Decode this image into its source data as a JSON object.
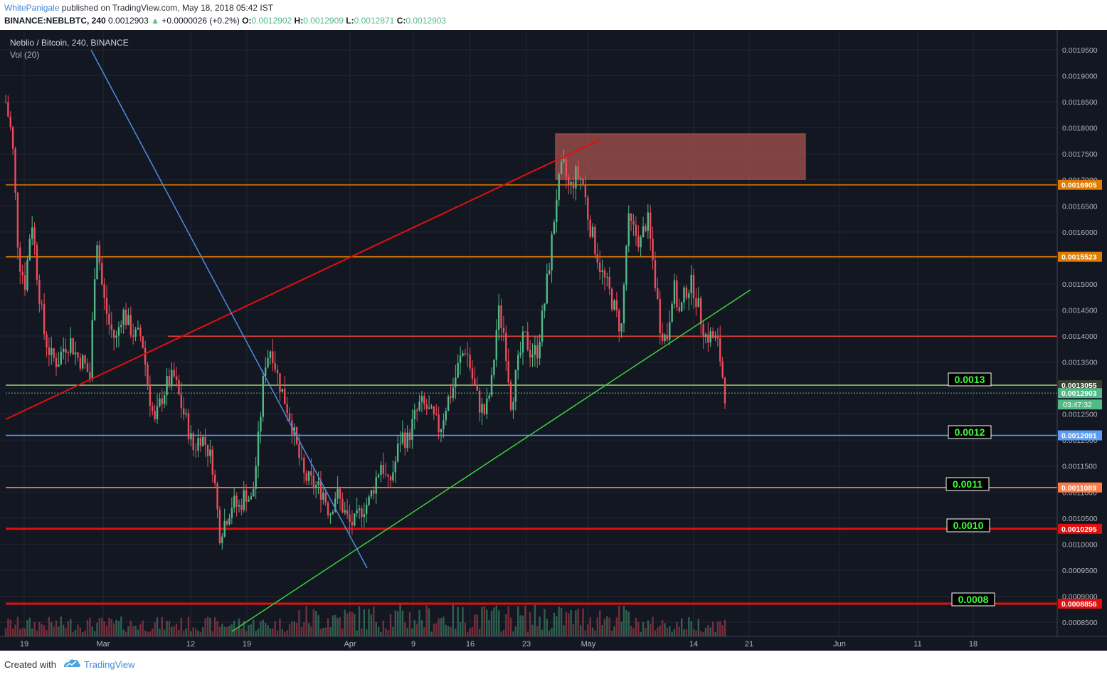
{
  "header": {
    "author": "WhitePanigale",
    "published": "published on TradingView.com, May 18, 2018 05:42 IST",
    "symbol": "BINANCE:NEBLBTC, 240",
    "last": "0.0012903",
    "change": "+0.0000026 (+0.2%)",
    "o_label": "O:",
    "o": "0.0012902",
    "h_label": "H:",
    "h": "0.0012909",
    "l_label": "L:",
    "l": "0.0012871",
    "c_label": "C:",
    "c": "0.0012903"
  },
  "legend": {
    "title": "Neblio / Bitcoin, 240, BINANCE",
    "vol": "Vol (20)"
  },
  "footer": {
    "created": "Created with",
    "brand": "TradingView"
  },
  "colors": {
    "background": "#131722",
    "grid": "#232733",
    "up": "#53b987",
    "down": "#eb4d5c",
    "axis_text": "#b2b5be"
  },
  "chart_data": {
    "type": "candlestick",
    "title": "Neblio / Bitcoin, 240, BINANCE",
    "ylim": [
      0.000825,
      0.00198
    ],
    "y_ticks": [
      "0.0008500",
      "0.0009000",
      "0.0009500",
      "0.0010000",
      "0.0010500",
      "0.0011000",
      "0.0011500",
      "0.0012000",
      "0.0012500",
      "0.0013000",
      "0.0013500",
      "0.0014000",
      "0.0014500",
      "0.0015000",
      "0.0015500",
      "0.0016000",
      "0.0016500",
      "0.0017000",
      "0.0017500",
      "0.0018000",
      "0.0018500",
      "0.0019000",
      "0.0019500"
    ],
    "x_ticks": [
      "19",
      "Mar",
      "12",
      "19",
      "Apr",
      "9",
      "16",
      "23",
      "May",
      "14",
      "21",
      "Jun",
      "11",
      "18"
    ],
    "price_path": [
      [
        0,
        0.00185
      ],
      [
        1,
        0.00178
      ],
      [
        2,
        0.00155
      ],
      [
        3,
        0.0015
      ],
      [
        4,
        0.00163
      ],
      [
        5,
        0.0015
      ],
      [
        6,
        0.0014
      ],
      [
        7,
        0.00136
      ],
      [
        8,
        0.00135
      ],
      [
        9,
        0.00138
      ],
      [
        10,
        0.00139
      ],
      [
        11,
        0.00136
      ],
      [
        12,
        0.00135
      ],
      [
        13,
        0.00132
      ],
      [
        14,
        0.0016
      ],
      [
        15,
        0.00148
      ],
      [
        16,
        0.00142
      ],
      [
        17,
        0.00139
      ],
      [
        18,
        0.00145
      ],
      [
        19,
        0.00142
      ],
      [
        20,
        0.0014
      ],
      [
        21,
        0.0014
      ],
      [
        22,
        0.0013
      ],
      [
        23,
        0.00123
      ],
      [
        24,
        0.00128
      ],
      [
        25,
        0.00131
      ],
      [
        26,
        0.00132
      ],
      [
        27,
        0.00127
      ],
      [
        28,
        0.00123
      ],
      [
        29,
        0.00118
      ],
      [
        30,
        0.00121
      ],
      [
        31,
        0.00119
      ],
      [
        32,
        0.00115
      ],
      [
        33,
        0.00102
      ],
      [
        34,
        0.00105
      ],
      [
        35,
        0.00108
      ],
      [
        36,
        0.00107
      ],
      [
        37,
        0.0011
      ],
      [
        38,
        0.00108
      ],
      [
        39,
        0.0012
      ],
      [
        40,
        0.00135
      ],
      [
        41,
        0.00138
      ],
      [
        42,
        0.00132
      ],
      [
        43,
        0.00128
      ],
      [
        44,
        0.00124
      ],
      [
        45,
        0.00118
      ],
      [
        46,
        0.00113
      ],
      [
        47,
        0.00112
      ],
      [
        48,
        0.00111
      ],
      [
        49,
        0.0011
      ],
      [
        50,
        0.00106
      ],
      [
        51,
        0.0011
      ],
      [
        52,
        0.00107
      ],
      [
        53,
        0.00104
      ],
      [
        54,
        0.00104
      ],
      [
        55,
        0.00107
      ],
      [
        56,
        0.00108
      ],
      [
        57,
        0.00112
      ],
      [
        58,
        0.00116
      ],
      [
        59,
        0.00111
      ],
      [
        60,
        0.00115
      ],
      [
        61,
        0.00121
      ],
      [
        62,
        0.0012
      ],
      [
        63,
        0.00124
      ],
      [
        64,
        0.00127
      ],
      [
        65,
        0.00126
      ],
      [
        66,
        0.00124
      ],
      [
        67,
        0.00122
      ],
      [
        68,
        0.00127
      ],
      [
        69,
        0.0013
      ],
      [
        70,
        0.00135
      ],
      [
        71,
        0.00138
      ],
      [
        72,
        0.00132
      ],
      [
        73,
        0.00127
      ],
      [
        74,
        0.00125
      ],
      [
        75,
        0.00131
      ],
      [
        76,
        0.00145
      ],
      [
        77,
        0.0014
      ],
      [
        78,
        0.00127
      ],
      [
        79,
        0.00134
      ],
      [
        80,
        0.0014
      ],
      [
        81,
        0.00137
      ],
      [
        82,
        0.00137
      ],
      [
        83,
        0.00145
      ],
      [
        84,
        0.00155
      ],
      [
        85,
        0.00167
      ],
      [
        86,
        0.00173
      ],
      [
        87,
        0.00168
      ],
      [
        88,
        0.00171
      ],
      [
        89,
        0.0017
      ],
      [
        90,
        0.00162
      ],
      [
        91,
        0.00157
      ],
      [
        92,
        0.00152
      ],
      [
        93,
        0.00149
      ],
      [
        94,
        0.00145
      ],
      [
        95,
        0.00141
      ],
      [
        96,
        0.00162
      ],
      [
        97,
        0.0016
      ],
      [
        98,
        0.00158
      ],
      [
        99,
        0.00163
      ],
      [
        100,
        0.00153
      ],
      [
        101,
        0.00142
      ],
      [
        102,
        0.00139
      ],
      [
        103,
        0.0015
      ],
      [
        104,
        0.00144
      ],
      [
        105,
        0.00149
      ],
      [
        106,
        0.0015
      ],
      [
        107,
        0.00145
      ],
      [
        108,
        0.0014
      ],
      [
        109,
        0.0014
      ],
      [
        110,
        0.00138
      ],
      [
        111,
        0.00129
      ]
    ],
    "hlines": [
      {
        "label": "0.0016905",
        "value": 0.0016905,
        "color": "#e07b00"
      },
      {
        "label": "0.0015523",
        "value": 0.0015523,
        "color": "#e07b00"
      },
      {
        "label": "0.0013055",
        "value": 0.0013055,
        "color": "#8fbf6a"
      },
      {
        "label": "0.0012903",
        "value": 0.0012903,
        "color": "#53b987"
      },
      {
        "label": "0.0012091",
        "value": 0.0012091,
        "color": "#5b9cf6"
      },
      {
        "label": "0.0011089",
        "value": 0.0011089,
        "color": "#ff7a45"
      },
      {
        "label": "0.0010295",
        "value": 0.0010295,
        "color": "#e01010"
      },
      {
        "label": "0.0008856",
        "value": 0.0008856,
        "color": "#e01010"
      }
    ],
    "countdown": "03:47:32",
    "annotations": [
      "0.0013",
      "0.0012",
      "0.0011",
      "0.0010",
      "0.0008"
    ]
  }
}
